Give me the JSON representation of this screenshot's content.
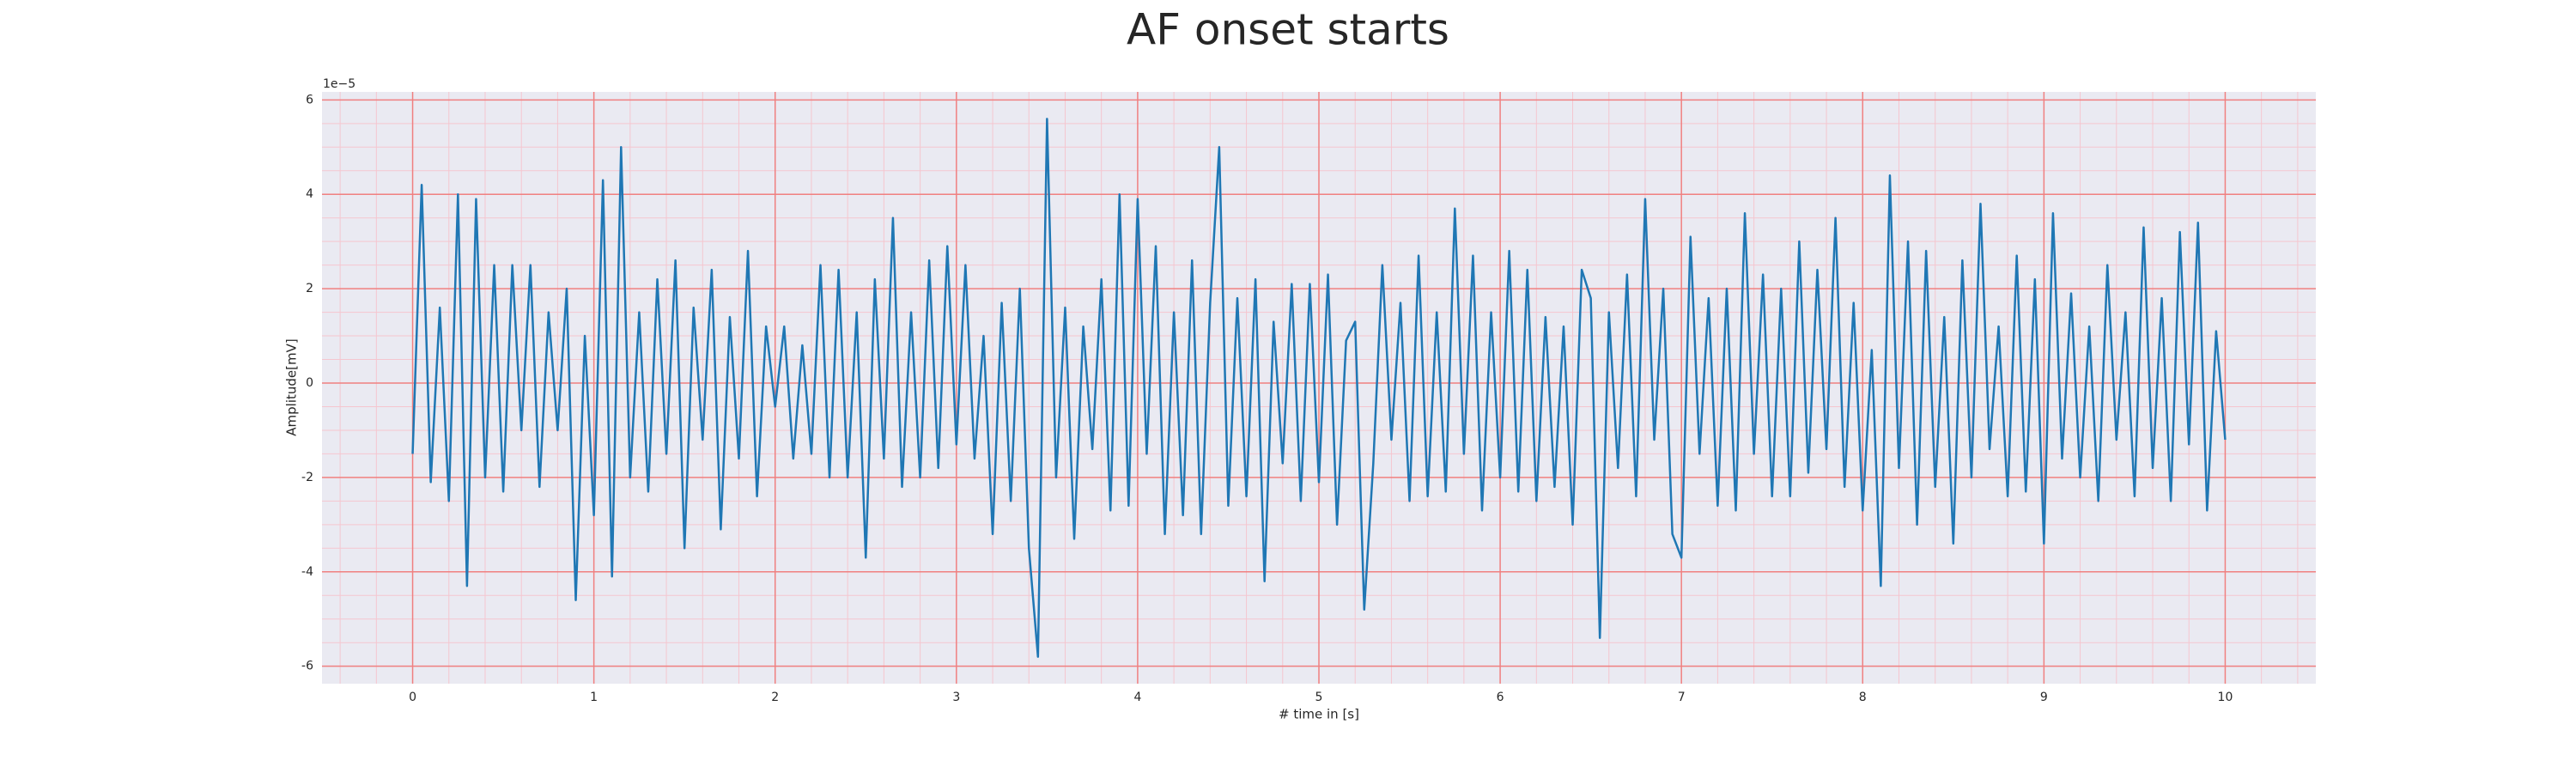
{
  "chart_data": {
    "type": "line",
    "title": "AF onset starts",
    "x_label": "# time in [s]",
    "y_label": "Amplitude[mV]",
    "y_offset_label": "1e−5",
    "color": "#1f77b4",
    "grid": true,
    "grid_color": "#f08080",
    "minor_grid_color": "#f5c6cf",
    "background": "#eaeaf2",
    "xlim": [
      -0.5,
      10.5
    ],
    "ylim": [
      -6.37,
      6.17
    ],
    "xticks": [
      0,
      1,
      2,
      3,
      4,
      5,
      6,
      7,
      8,
      9,
      10
    ],
    "yticks": [
      -6,
      -4,
      -2,
      0,
      2,
      4,
      6
    ],
    "xminorticks": [
      -0.4,
      -0.2,
      0.2,
      0.4,
      0.6,
      0.8,
      1.2,
      1.4,
      1.6,
      1.8,
      2.2,
      2.4,
      2.6,
      2.8,
      3.2,
      3.4,
      3.6,
      3.8,
      4.2,
      4.4,
      4.6,
      4.8,
      5.2,
      5.4,
      5.6,
      5.8,
      6.2,
      6.4,
      6.6,
      6.8,
      7.2,
      7.4,
      7.6,
      7.8,
      8.2,
      8.4,
      8.6,
      8.8,
      9.2,
      9.4,
      9.6,
      9.8,
      10.2,
      10.4
    ],
    "yminorticks": [
      -5.5,
      -5,
      -4.5,
      -3.5,
      -3,
      -2.5,
      -1.5,
      -1,
      -0.5,
      0.5,
      1,
      1.5,
      2.5,
      3,
      3.5,
      4.5,
      5,
      5.5
    ],
    "x": [
      0,
      0.05,
      0.1,
      0.15,
      0.2,
      0.25,
      0.3,
      0.35,
      0.4,
      0.45,
      0.5,
      0.55,
      0.6,
      0.65,
      0.7,
      0.75,
      0.8,
      0.85,
      0.9,
      0.95,
      1,
      1.05,
      1.1,
      1.15,
      1.2,
      1.25,
      1.3,
      1.35,
      1.4,
      1.45,
      1.5,
      1.55,
      1.6,
      1.65,
      1.7,
      1.75,
      1.8,
      1.85,
      1.9,
      1.95,
      2,
      2.05,
      2.1,
      2.15,
      2.2,
      2.25,
      2.3,
      2.35,
      2.4,
      2.45,
      2.5,
      2.55,
      2.6,
      2.65,
      2.7,
      2.75,
      2.8,
      2.85,
      2.9,
      2.95,
      3,
      3.05,
      3.1,
      3.15,
      3.2,
      3.25,
      3.3,
      3.35,
      3.4,
      3.45,
      3.5,
      3.55,
      3.6,
      3.65,
      3.7,
      3.75,
      3.8,
      3.85,
      3.9,
      3.95,
      4,
      4.05,
      4.1,
      4.15,
      4.2,
      4.25,
      4.3,
      4.35,
      4.4,
      4.45,
      4.5,
      4.55,
      4.6,
      4.65,
      4.7,
      4.75,
      4.8,
      4.85,
      4.9,
      4.95,
      5,
      5.05,
      5.1,
      5.15,
      5.2,
      5.25,
      5.3,
      5.35,
      5.4,
      5.45,
      5.5,
      5.55,
      5.6,
      5.65,
      5.7,
      5.75,
      5.8,
      5.85,
      5.9,
      5.95,
      6,
      6.05,
      6.1,
      6.15,
      6.2,
      6.25,
      6.3,
      6.35,
      6.4,
      6.45,
      6.5,
      6.55,
      6.6,
      6.65,
      6.7,
      6.75,
      6.8,
      6.85,
      6.9,
      6.95,
      7,
      7.05,
      7.1,
      7.15,
      7.2,
      7.25,
      7.3,
      7.35,
      7.4,
      7.45,
      7.5,
      7.55,
      7.6,
      7.65,
      7.7,
      7.75,
      7.8,
      7.85,
      7.9,
      7.95,
      8,
      8.05,
      8.1,
      8.15,
      8.2,
      8.25,
      8.3,
      8.35,
      8.4,
      8.45,
      8.5,
      8.55,
      8.6,
      8.65,
      8.7,
      8.75,
      8.8,
      8.85,
      8.9,
      8.95,
      9,
      9.05,
      9.1,
      9.15,
      9.2,
      9.25,
      9.3,
      9.35,
      9.4,
      9.45,
      9.5,
      9.55,
      9.6,
      9.65,
      9.7,
      9.75,
      9.8,
      9.85,
      9.9,
      9.95,
      10
    ],
    "values": [
      -1.5,
      4.2,
      -2.1,
      1.6,
      -2.5,
      4.0,
      -4.3,
      3.9,
      -2.0,
      2.5,
      -2.3,
      2.5,
      -1.0,
      2.5,
      -2.2,
      1.5,
      -1.0,
      2.0,
      -4.6,
      1.0,
      -2.8,
      4.3,
      -4.1,
      5.0,
      -2.0,
      1.5,
      -2.3,
      2.2,
      -1.5,
      2.6,
      -3.5,
      1.6,
      -1.2,
      2.4,
      -3.1,
      1.4,
      -1.6,
      2.8,
      -2.4,
      1.2,
      -0.5,
      1.2,
      -1.6,
      0.8,
      -1.5,
      2.5,
      -2.0,
      2.4,
      -2.0,
      1.5,
      -3.7,
      2.2,
      -1.6,
      3.5,
      -2.2,
      1.5,
      -2.0,
      2.6,
      -1.8,
      2.9,
      -1.3,
      2.5,
      -1.6,
      1.0,
      -3.2,
      1.7,
      -2.5,
      2.0,
      -3.5,
      -5.8,
      5.6,
      -2.0,
      1.6,
      -3.3,
      1.2,
      -1.4,
      2.2,
      -2.7,
      4.0,
      -2.6,
      3.9,
      -1.5,
      2.9,
      -3.2,
      1.5,
      -2.8,
      2.6,
      -3.2,
      1.7,
      5.0,
      -2.6,
      1.8,
      -2.4,
      2.2,
      -4.2,
      1.3,
      -1.7,
      2.1,
      -2.5,
      2.1,
      -2.1,
      2.3,
      -3.0,
      0.9,
      1.3,
      -4.8,
      -1.7,
      2.5,
      -1.2,
      1.7,
      -2.5,
      2.7,
      -2.4,
      1.5,
      -2.3,
      3.7,
      -1.5,
      2.7,
      -2.7,
      1.5,
      -2.0,
      2.8,
      -2.3,
      2.4,
      -2.5,
      1.4,
      -2.2,
      1.2,
      -3.0,
      2.4,
      1.8,
      -5.4,
      1.5,
      -1.8,
      2.3,
      -2.4,
      3.9,
      -1.2,
      2.0,
      -3.2,
      -3.7,
      3.1,
      -1.5,
      1.8,
      -2.6,
      2.0,
      -2.7,
      3.6,
      -1.5,
      2.3,
      -2.4,
      2.0,
      -2.4,
      3.0,
      -1.9,
      2.4,
      -1.4,
      3.5,
      -2.2,
      1.7,
      -2.7,
      0.7,
      -4.3,
      4.4,
      -1.8,
      3.0,
      -3.0,
      2.8,
      -2.2,
      1.4,
      -3.4,
      2.6,
      -2.0,
      3.8,
      -1.4,
      1.2,
      -2.4,
      2.7,
      -2.3,
      2.2,
      -3.4,
      3.6,
      -1.6,
      1.9,
      -2.0,
      1.2,
      -2.5,
      2.5,
      -1.2,
      1.5,
      -2.4,
      3.3,
      -1.8,
      1.8,
      -2.5,
      3.2,
      -1.3,
      3.4,
      -2.7,
      1.1,
      -1.2
    ]
  }
}
